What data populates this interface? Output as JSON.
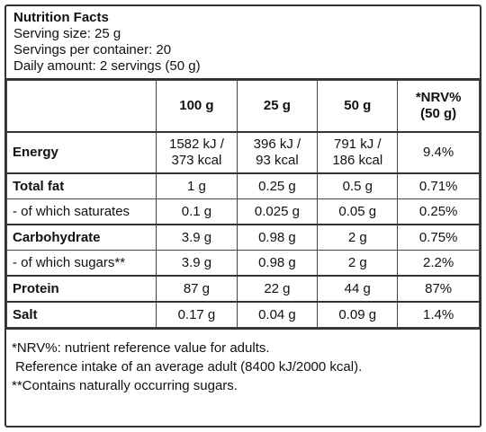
{
  "header": {
    "title": "Nutrition Facts",
    "lines": [
      "Serving size: 25 g",
      "Servings per container: 20",
      "Daily amount: 2 servings (50 g)"
    ]
  },
  "table": {
    "columns": [
      [
        "100 g"
      ],
      [
        "25 g"
      ],
      [
        "50 g"
      ],
      [
        "*NRV%",
        "(50 g)"
      ]
    ],
    "rows": [
      {
        "label": "Energy",
        "bold": true,
        "cells": [
          [
            "1582 kJ /",
            "373 kcal"
          ],
          [
            "396 kJ /",
            "93 kcal"
          ],
          [
            "791 kJ /",
            "186 kcal"
          ],
          [
            "9.4%"
          ]
        ]
      },
      {
        "label": "Total fat",
        "bold": true,
        "cells": [
          [
            "1 g"
          ],
          [
            "0.25 g"
          ],
          [
            "0.5 g"
          ],
          [
            "0.71%"
          ]
        ]
      },
      {
        "label": "- of which saturates",
        "bold": false,
        "cells": [
          [
            "0.1 g"
          ],
          [
            "0.025 g"
          ],
          [
            "0.05 g"
          ],
          [
            "0.25%"
          ]
        ]
      },
      {
        "label": "Carbohydrate",
        "bold": true,
        "cells": [
          [
            "3.9 g"
          ],
          [
            "0.98 g"
          ],
          [
            "2 g"
          ],
          [
            "0.75%"
          ]
        ]
      },
      {
        "label": "- of which sugars**",
        "bold": false,
        "cells": [
          [
            "3.9 g"
          ],
          [
            "0.98 g"
          ],
          [
            "2 g"
          ],
          [
            "2.2%"
          ]
        ]
      },
      {
        "label": "Protein",
        "bold": true,
        "cells": [
          [
            "87 g"
          ],
          [
            "22 g"
          ],
          [
            "44 g"
          ],
          [
            "87%"
          ]
        ]
      },
      {
        "label": "Salt",
        "bold": true,
        "cells": [
          [
            "0.17 g"
          ],
          [
            "0.04 g"
          ],
          [
            "0.09 g"
          ],
          [
            "1.4%"
          ]
        ]
      }
    ]
  },
  "footnotes": [
    "*NRV%: nutrient reference value for adults.",
    "Reference intake of an average adult (8400 kJ/2000 kcal).",
    "**Contains naturally occurring sugars."
  ]
}
